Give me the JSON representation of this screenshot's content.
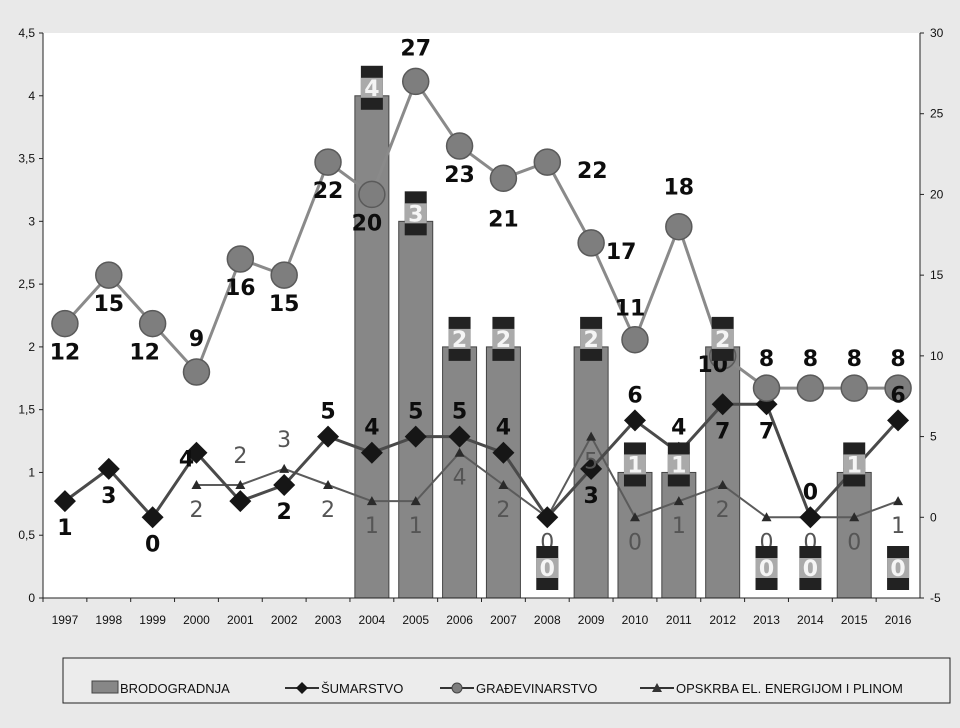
{
  "chart_data": {
    "type": "bar",
    "categories": [
      "1997",
      "1998",
      "1999",
      "2000",
      "2001",
      "2002",
      "2003",
      "2004",
      "2005",
      "2006",
      "2007",
      "2008",
      "2009",
      "2010",
      "2011",
      "2012",
      "2013",
      "2014",
      "2015",
      "2016"
    ],
    "left_axis": {
      "range": [
        0,
        4.5
      ],
      "ticks": [
        "0",
        "0,5",
        "1",
        "1,5",
        "2",
        "2,5",
        "3",
        "3,5",
        "4",
        "4,5"
      ]
    },
    "right_axis": {
      "range": [
        -5,
        30
      ],
      "ticks": [
        "-5",
        "0",
        "5",
        "10",
        "15",
        "20",
        "25",
        "30"
      ]
    },
    "grid": false,
    "legend_position": "bottom",
    "series": [
      {
        "name": "BRODOGRADNJA",
        "kind": "bar",
        "axis": "left",
        "values": [
          0,
          0,
          0,
          0,
          0,
          0,
          0,
          4,
          3,
          2,
          2,
          0,
          2,
          1,
          1,
          2,
          0,
          0,
          1,
          0
        ],
        "labels": [
          "",
          "",
          "",
          "",
          "",
          "",
          "",
          "4",
          "3",
          "2",
          "2",
          "0",
          "2",
          "1",
          "1",
          "2",
          "0",
          "0",
          "1",
          "0"
        ]
      },
      {
        "name": "ŠUMARSTVO",
        "kind": "line-diamond",
        "axis": "right",
        "values": [
          1,
          3,
          0,
          4,
          1,
          2,
          5,
          4,
          5,
          5,
          4,
          0,
          3,
          6,
          4,
          7,
          7,
          0,
          3,
          6
        ],
        "labels": [
          "1",
          "3",
          "0",
          "4",
          "",
          "2",
          "5",
          "4",
          "5",
          "5",
          "4",
          "",
          "3",
          "6",
          "4",
          "7",
          "7",
          "0",
          "",
          "6"
        ]
      },
      {
        "name": "GRAĐEVINARSTVO",
        "kind": "line-circle",
        "axis": "right",
        "values": [
          12,
          15,
          12,
          9,
          16,
          15,
          22,
          20,
          27,
          23,
          21,
          22,
          17,
          11,
          18,
          10,
          8,
          8,
          8,
          8
        ],
        "labels": [
          "12",
          "15",
          "12",
          "9",
          "16",
          "15",
          "22",
          "20",
          "27",
          "23",
          "21",
          "22",
          "17",
          "11",
          "18",
          "10",
          "8",
          "8",
          "8",
          "8"
        ]
      },
      {
        "name": "OPSKRBA EL. ENERGIJOM I PLINOM",
        "kind": "line-triangle",
        "axis": "right",
        "values": [
          null,
          null,
          null,
          2,
          2,
          3,
          2,
          1,
          1,
          4,
          2,
          0,
          5,
          0,
          1,
          2,
          0,
          0,
          0,
          1
        ],
        "labels": [
          "",
          "",
          "",
          "2",
          "2",
          "3",
          "2",
          "1",
          "1",
          "4",
          "2",
          "0",
          "5",
          "0",
          "1",
          "2",
          "0",
          "0",
          "0",
          "1"
        ]
      }
    ],
    "title": "",
    "xlabel": "",
    "ylabel": "",
    "colors": {
      "bar": "#878787",
      "bar_edge": "#444444",
      "diamond": "#161616",
      "circle": "#7e7e7e",
      "triangle_line": "#5b5b5b",
      "background": "#e9e9e9",
      "plot": "#ffffff"
    }
  }
}
